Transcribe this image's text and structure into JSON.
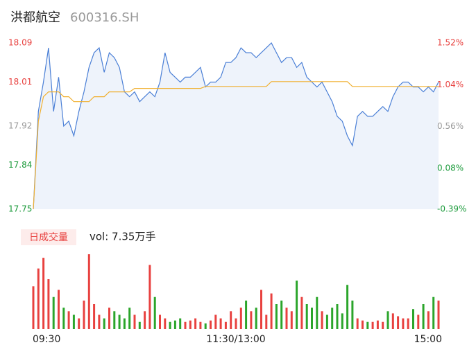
{
  "header": {
    "name": "洪都航空",
    "code": "600316.SH"
  },
  "chart_data": [
    {
      "type": "line",
      "ylim": [
        17.75,
        18.09
      ],
      "yticks": [
        17.75,
        17.84,
        17.92,
        18.01,
        18.09
      ],
      "ytick_colors": [
        "#1a9a3a",
        "#1a9a3a",
        "#999999",
        "#e8413f",
        "#e8413f"
      ],
      "y2lim": [
        -0.39,
        1.52
      ],
      "y2ticks": [
        {
          "value": -0.39,
          "label": "-0.39%"
        },
        {
          "value": 0.08,
          "label": "0.08%"
        },
        {
          "value": 0.56,
          "label": "0.56%"
        },
        {
          "value": 1.04,
          "label": "1.04%"
        },
        {
          "value": 1.52,
          "label": "1.52%"
        }
      ],
      "grid": false,
      "series": [
        {
          "color": "#4a7fd6",
          "fill": "#eef3fb",
          "values": [
            17.75,
            17.95,
            18.01,
            18.08,
            17.95,
            18.02,
            17.92,
            17.93,
            17.9,
            17.95,
            17.99,
            18.04,
            18.07,
            18.08,
            18.03,
            18.07,
            18.06,
            18.04,
            17.99,
            17.98,
            17.99,
            17.97,
            17.98,
            17.99,
            17.98,
            18.01,
            18.07,
            18.03,
            18.02,
            18.01,
            18.02,
            18.02,
            18.03,
            18.04,
            18.0,
            18.01,
            18.01,
            18.02,
            18.05,
            18.05,
            18.06,
            18.08,
            18.07,
            18.07,
            18.06,
            18.07,
            18.08,
            18.09,
            18.07,
            18.05,
            18.06,
            18.06,
            18.04,
            18.05,
            18.02,
            18.01,
            18.0,
            18.01,
            17.99,
            17.97,
            17.94,
            17.93,
            17.9,
            17.88,
            17.94,
            17.95,
            17.94,
            17.94,
            17.95,
            17.96,
            17.95,
            17.98,
            18.0,
            18.01,
            18.01,
            18.0,
            18.0,
            17.99,
            18.0,
            17.99,
            18.01
          ]
        },
        {
          "color": "#f0b030",
          "values": [
            17.75,
            17.93,
            17.98,
            17.99,
            17.99,
            17.99,
            17.98,
            17.98,
            17.97,
            17.97,
            17.97,
            17.97,
            17.98,
            17.98,
            17.98,
            17.99,
            17.99,
            17.99,
            17.99,
            17.99,
            17.997,
            17.997,
            17.997,
            17.997,
            17.997,
            17.997,
            17.997,
            17.997,
            17.997,
            17.997,
            17.997,
            17.997,
            17.997,
            17.997,
            18.001,
            18.001,
            18.001,
            18.001,
            18.001,
            18.001,
            18.001,
            18.001,
            18.001,
            18.001,
            18.001,
            18.001,
            18.001,
            18.011,
            18.011,
            18.011,
            18.011,
            18.011,
            18.011,
            18.011,
            18.011,
            18.011,
            18.011,
            18.011,
            18.011,
            18.011,
            18.011,
            18.011,
            18.011,
            18.001,
            18.001,
            18.001,
            18.001,
            18.001,
            18.001,
            18.001,
            18.001,
            18.001,
            18.001,
            18.001,
            18.001,
            18.001,
            18.001,
            18.001,
            18.001,
            18.001,
            18.001
          ]
        }
      ]
    },
    {
      "type": "bar",
      "label": "日成交量",
      "annotation": "vol: 7.35万手",
      "up_color": "#e8413f",
      "down_color": "#2ba52b",
      "categories": [
        "09:30",
        null,
        null,
        null,
        null,
        null,
        null,
        null,
        null,
        null,
        null,
        null,
        null,
        null,
        null,
        null,
        null,
        null,
        null,
        null,
        null,
        null,
        null,
        null,
        null,
        null,
        null,
        null,
        null,
        null,
        null,
        null,
        null,
        null,
        null,
        null,
        null,
        null,
        null,
        null,
        "11:30/13:00",
        null,
        null,
        null,
        null,
        null,
        null,
        null,
        null,
        null,
        null,
        null,
        null,
        null,
        null,
        null,
        null,
        null,
        null,
        null,
        null,
        null,
        null,
        null,
        null,
        null,
        null,
        null,
        null,
        null,
        null,
        null,
        null,
        null,
        null,
        null,
        null,
        null,
        null,
        null,
        "15:00"
      ],
      "values": [
        60,
        85,
        100,
        70,
        45,
        55,
        30,
        25,
        20,
        15,
        40,
        105,
        35,
        20,
        15,
        30,
        25,
        20,
        15,
        30,
        20,
        10,
        25,
        90,
        45,
        20,
        15,
        10,
        12,
        15,
        10,
        12,
        15,
        10,
        8,
        12,
        20,
        15,
        10,
        25,
        15,
        30,
        40,
        25,
        30,
        55,
        20,
        50,
        35,
        40,
        30,
        25,
        68,
        45,
        35,
        30,
        45,
        25,
        20,
        30,
        35,
        22,
        62,
        40,
        15,
        12,
        10,
        10,
        12,
        10,
        25,
        22,
        18,
        15,
        15,
        28,
        20,
        35,
        25,
        45,
        40
      ]
    }
  ]
}
